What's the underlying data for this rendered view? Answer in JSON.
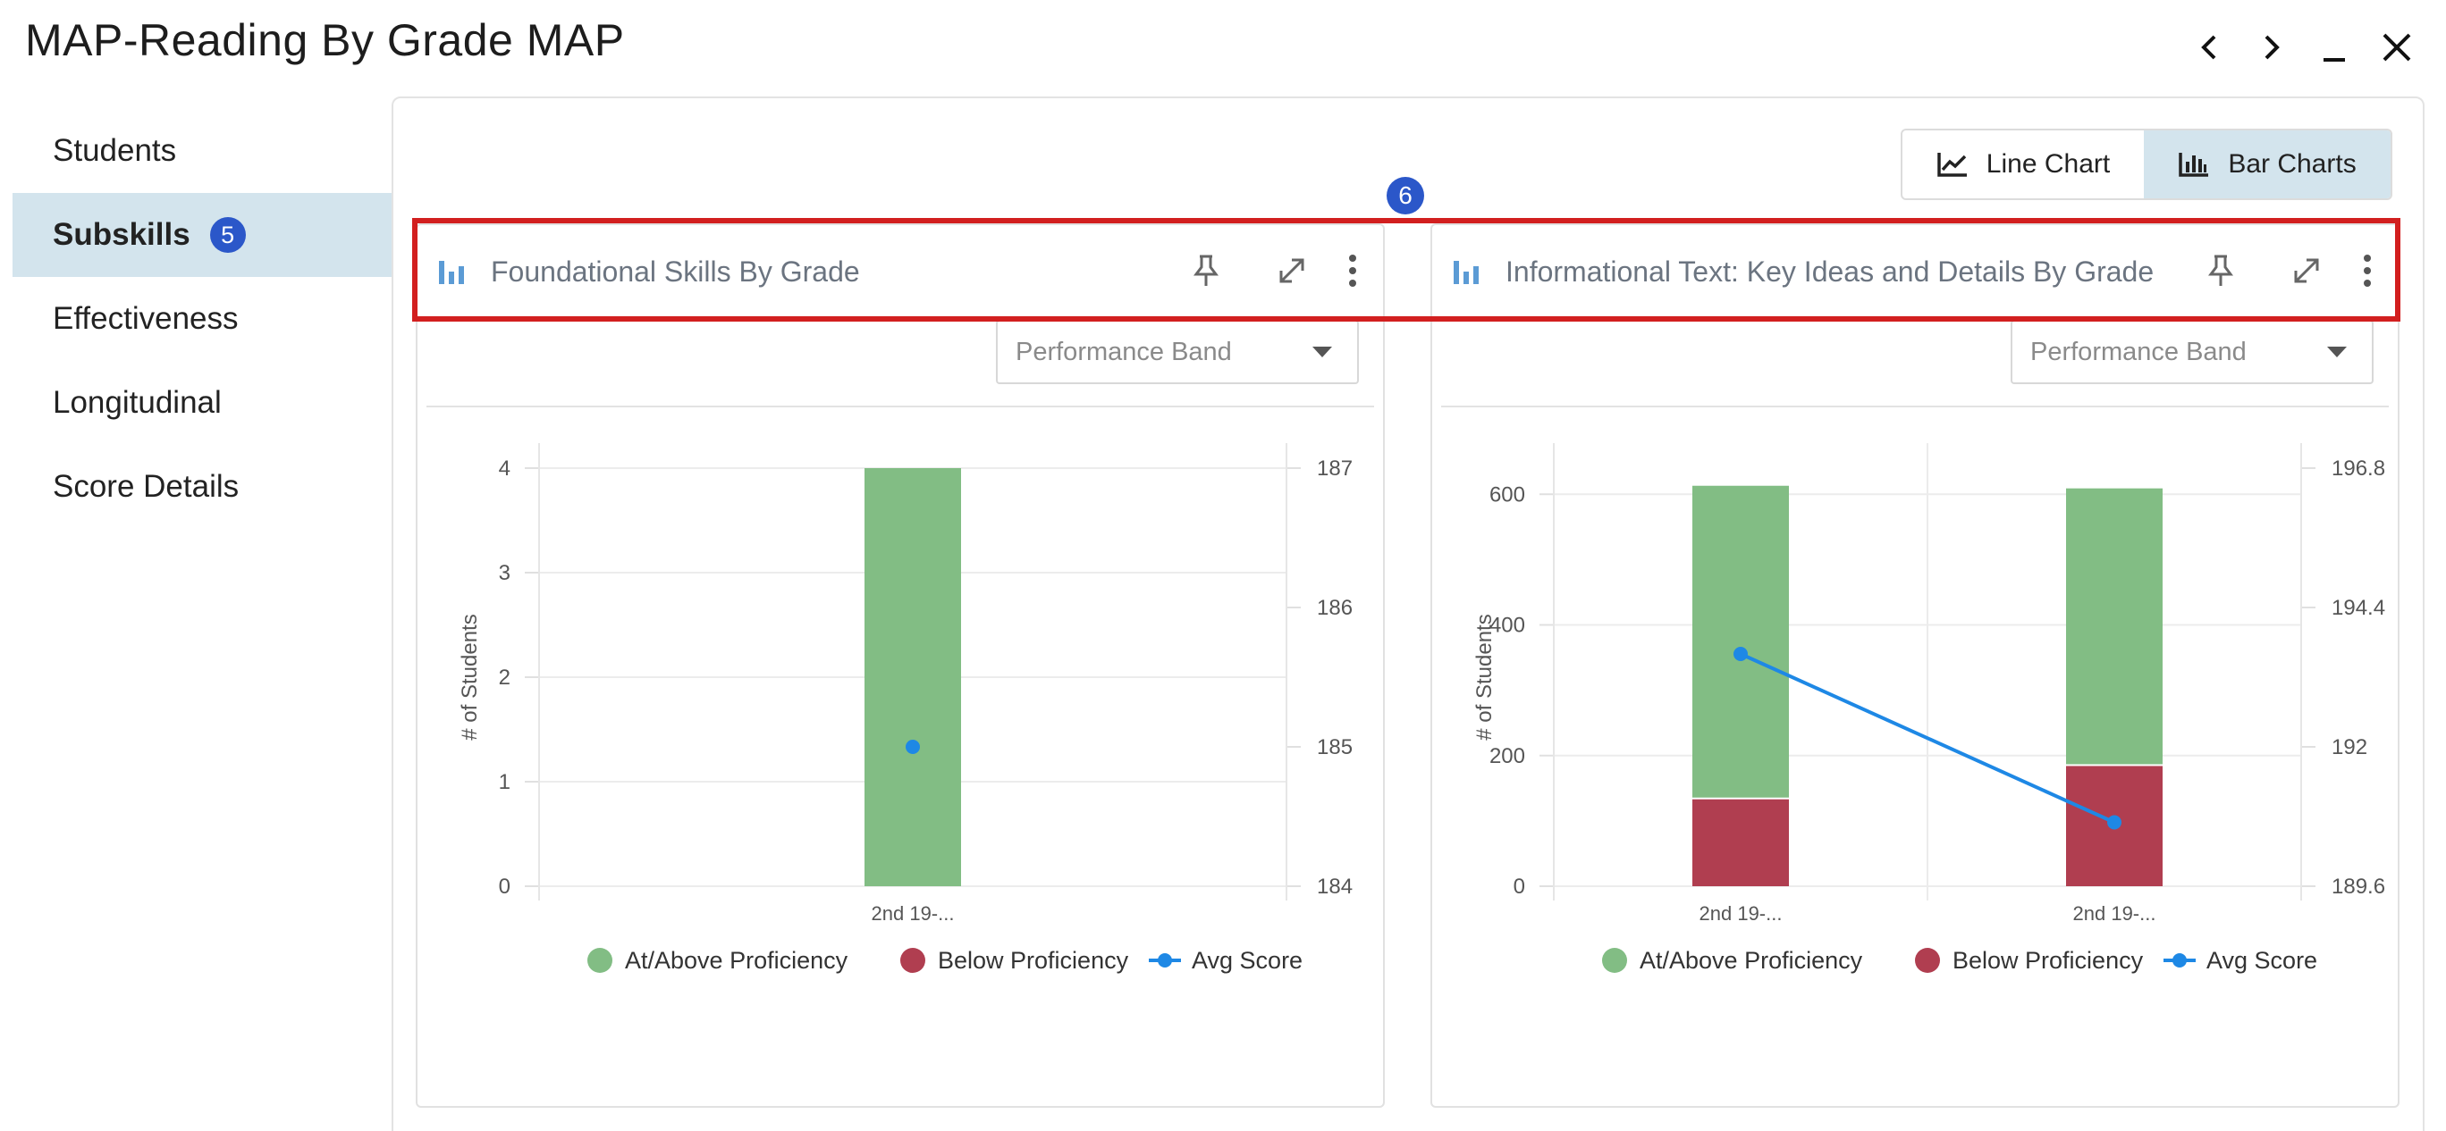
{
  "window": {
    "title": "MAP-Reading By Grade MAP",
    "controls": [
      {
        "name": "prev-icon"
      },
      {
        "name": "next-icon"
      },
      {
        "name": "minimize-icon"
      },
      {
        "name": "close-icon"
      }
    ]
  },
  "sidebar": {
    "items": [
      {
        "label": "Students",
        "active": false
      },
      {
        "label": "Subskills",
        "active": true,
        "badge": "5"
      },
      {
        "label": "Effectiveness",
        "active": false
      },
      {
        "label": "Longitudinal",
        "active": false
      },
      {
        "label": "Score Details",
        "active": false
      }
    ]
  },
  "toggle": {
    "line_label": "Line Chart",
    "bar_label": "Bar Charts",
    "selected": "Bar Charts"
  },
  "marker": "6",
  "colors": {
    "at_above": "#82bd84",
    "below": "#b03e50",
    "avg": "#1e88e5",
    "accent": "#2b57c9",
    "highlight": "#d21f1f",
    "active_bg": "#d3e4ed"
  },
  "cards": [
    {
      "title": "Foundational Skills By Grade",
      "dropdown": {
        "placeholder": "Performance Band"
      },
      "icons": [
        "bar-chart-icon",
        "pin-icon",
        "expand-icon",
        "more-vertical-icon"
      ]
    },
    {
      "title": "Informational Text: Key Ideas and Details By Grade",
      "dropdown": {
        "placeholder": "Performance Band"
      },
      "icons": [
        "bar-chart-icon",
        "pin-icon",
        "expand-icon",
        "more-vertical-icon"
      ]
    }
  ],
  "chart_data": [
    {
      "type": "bar",
      "stacked": true,
      "categories": [
        "2nd 19-..."
      ],
      "ylabel": "# of Students",
      "ylim": [
        0,
        4
      ],
      "yticks": [
        0,
        1,
        2,
        3,
        4
      ],
      "y2lim": [
        184,
        187
      ],
      "y2ticks": [
        184,
        185,
        186,
        187
      ],
      "series": [
        {
          "name": "At/Above Proficiency",
          "values": [
            4
          ]
        },
        {
          "name": "Below Proficiency",
          "values": [
            0
          ]
        },
        {
          "name": "Avg Score",
          "kind": "line",
          "axis": "right",
          "values": [
            185
          ]
        }
      ],
      "legend": [
        "At/Above Proficiency",
        "Below Proficiency",
        "Avg Score"
      ],
      "legend_position": "bottom",
      "grid": true
    },
    {
      "type": "bar",
      "stacked": true,
      "categories": [
        "2nd 19-...",
        "2nd 19-..."
      ],
      "ylabel": "# of Students",
      "ylim": [
        0,
        640
      ],
      "yticks": [
        0,
        200,
        400,
        600
      ],
      "y2lim": [
        189.6,
        196.8
      ],
      "y2ticks": [
        189.6,
        192,
        194.4,
        196.8
      ],
      "series": [
        {
          "name": "At/Above Proficiency",
          "values": [
            480,
            425
          ]
        },
        {
          "name": "Below Proficiency",
          "values": [
            133,
            184
          ]
        },
        {
          "name": "Avg Score",
          "kind": "line",
          "axis": "right",
          "values": [
            193.6,
            190.7
          ]
        }
      ],
      "legend": [
        "At/Above Proficiency",
        "Below Proficiency",
        "Avg Score"
      ],
      "legend_position": "bottom",
      "grid": true
    }
  ]
}
